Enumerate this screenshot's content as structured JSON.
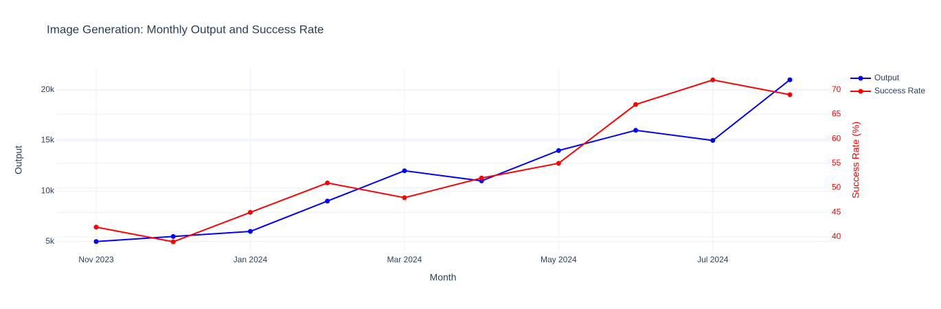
{
  "chart_data": {
    "type": "line",
    "title": "Image Generation: Monthly Output and Success Rate",
    "x_label": "Month",
    "y_label": "Output",
    "y2_label": "Success Rate (%)",
    "x": [
      "2023-11",
      "2023-12",
      "2024-01",
      "2024-02",
      "2024-03",
      "2024-04",
      "2024-05",
      "2024-06",
      "2024-07",
      "2024-08"
    ],
    "xlim": [
      "2023-11",
      "2024-08"
    ],
    "xticks": [
      {
        "value": "2023-11",
        "label": "Nov 2023"
      },
      {
        "value": "2024-01",
        "label": "Jan 2024"
      },
      {
        "value": "2024-03",
        "label": "Mar 2024"
      },
      {
        "value": "2024-05",
        "label": "May 2024"
      },
      {
        "value": "2024-07",
        "label": "Jul 2024"
      }
    ],
    "ylim": [
      4100,
      22100
    ],
    "yticks": [
      {
        "value": 5000,
        "label": "5k"
      },
      {
        "value": 10000,
        "label": "10k"
      },
      {
        "value": 15000,
        "label": "15k"
      },
      {
        "value": 20000,
        "label": "20k"
      }
    ],
    "y2lim": [
      37.2,
      74.3
    ],
    "y2ticks": [
      40,
      45,
      50,
      55,
      60,
      65,
      70
    ],
    "y2_color": "#ff0000",
    "grid": true,
    "legend": "top-right",
    "series": [
      {
        "name": "Output",
        "color": "#0000ff",
        "values": [
          5000,
          5500,
          6000,
          9000,
          12000,
          11000,
          14000,
          16000,
          15000,
          21000
        ]
      },
      {
        "name": "Success Rate",
        "color": "#ff0000",
        "axis": "y2",
        "values": [
          42,
          39,
          45,
          51,
          48,
          52,
          55,
          67,
          72,
          69
        ]
      }
    ]
  }
}
